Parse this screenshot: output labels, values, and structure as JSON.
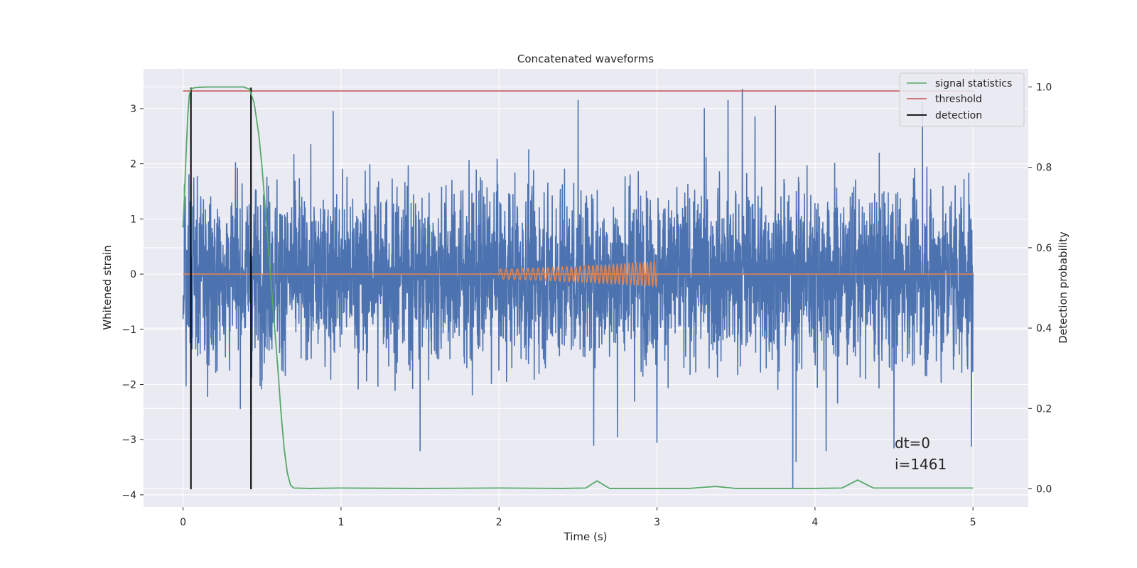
{
  "chart_data": {
    "type": "line",
    "title": "Concatenated waveforms",
    "xlabel": "Time (s)",
    "ylabel": "Whitened strain",
    "y2label": "Detection probability",
    "xlim": [
      -0.25,
      5.35
    ],
    "ylim": [
      -4.22,
      3.72
    ],
    "y2lim": [
      -0.045,
      1.045
    ],
    "xticks": [
      0,
      1,
      2,
      3,
      4,
      5
    ],
    "yticks": [
      -4,
      -3,
      -2,
      -1,
      0,
      1,
      2,
      3
    ],
    "y2ticks": [
      0.0,
      0.2,
      0.4,
      0.6,
      0.8,
      1.0
    ],
    "xtick_labels": [
      "0",
      "1",
      "2",
      "3",
      "4",
      "5"
    ],
    "ytick_labels": [
      "−4",
      "−3",
      "−2",
      "−1",
      "0",
      "1",
      "2",
      "3"
    ],
    "y2tick_labels": [
      "0.0",
      "0.2",
      "0.4",
      "0.6",
      "0.8",
      "1.0"
    ],
    "grid": true,
    "legend_placement": "top-right",
    "colors": {
      "background": "#eaeaf2",
      "grid": "#ffffff",
      "noise": "#4c72b0",
      "injected_signal": "#dd8452",
      "signal_statistics": "#55a868",
      "threshold": "#c44e52",
      "detection": "#000000"
    },
    "series": [
      {
        "name": "signal statistics",
        "axis": "right",
        "x": [
          0.0,
          0.01,
          0.02,
          0.03,
          0.04,
          0.05,
          0.07,
          0.1,
          0.15,
          0.2,
          0.3,
          0.38,
          0.42,
          0.45,
          0.48,
          0.5,
          0.52,
          0.54,
          0.56,
          0.58,
          0.6,
          0.62,
          0.64,
          0.66,
          0.68,
          0.7,
          0.8,
          1.0,
          1.5,
          2.0,
          2.4,
          2.55,
          2.62,
          2.7,
          3.2,
          3.37,
          3.5,
          4.0,
          4.17,
          4.27,
          4.37,
          4.6,
          5.0
        ],
        "y": [
          0.65,
          0.74,
          0.84,
          0.93,
          0.98,
          0.995,
          0.998,
          0.999,
          1.0,
          1.0,
          1.0,
          1.0,
          0.995,
          0.96,
          0.88,
          0.8,
          0.7,
          0.6,
          0.5,
          0.4,
          0.3,
          0.19,
          0.1,
          0.04,
          0.01,
          0.002,
          0.001,
          0.002,
          0.001,
          0.002,
          0.001,
          0.002,
          0.02,
          0.001,
          0.001,
          0.006,
          0.001,
          0.001,
          0.002,
          0.022,
          0.002,
          0.002,
          0.002
        ]
      },
      {
        "name": "threshold",
        "axis": "right",
        "x": [
          0.0,
          5.0
        ],
        "y": [
          0.99,
          0.99
        ]
      },
      {
        "name": "detection",
        "axis": "left",
        "x": [
          0.05,
          0.43
        ],
        "ymin": -3.9,
        "ymax": 3.38
      },
      {
        "name": "",
        "axis": "left",
        "description_key": "whitened-noise",
        "x_range": [
          0.0,
          5.0
        ],
        "typical_amplitude": 1.0,
        "peaks": [
          {
            "x": 0.43,
            "y": -3.35
          },
          {
            "x": 0.95,
            "y": 2.95
          },
          {
            "x": 1.5,
            "y": -3.2
          },
          {
            "x": 2.5,
            "y": 3.15
          },
          {
            "x": 2.6,
            "y": -3.1
          },
          {
            "x": 2.75,
            "y": -2.95
          },
          {
            "x": 3.0,
            "y": -3.05
          },
          {
            "x": 3.3,
            "y": 3.0
          },
          {
            "x": 3.45,
            "y": 3.15
          },
          {
            "x": 3.54,
            "y": 3.35
          },
          {
            "x": 3.62,
            "y": 2.85
          },
          {
            "x": 3.75,
            "y": 3.05
          },
          {
            "x": 3.86,
            "y": -3.88
          },
          {
            "x": 3.88,
            "y": -3.4
          },
          {
            "x": 4.07,
            "y": -3.2
          },
          {
            "x": 4.5,
            "y": -3.15
          },
          {
            "x": 4.68,
            "y": 3.1
          },
          {
            "x": 4.99,
            "y": -3.12
          }
        ]
      },
      {
        "name": "",
        "axis": "left",
        "description_key": "injected-chirp",
        "x_range": [
          2.0,
          3.0
        ],
        "start_amplitude": 0.09,
        "end_amplitude": 0.22,
        "cycles": 36
      }
    ],
    "legend": [
      "signal statistics",
      "threshold",
      "detection"
    ],
    "annotations": [
      "dt=0",
      "i=1461"
    ]
  }
}
